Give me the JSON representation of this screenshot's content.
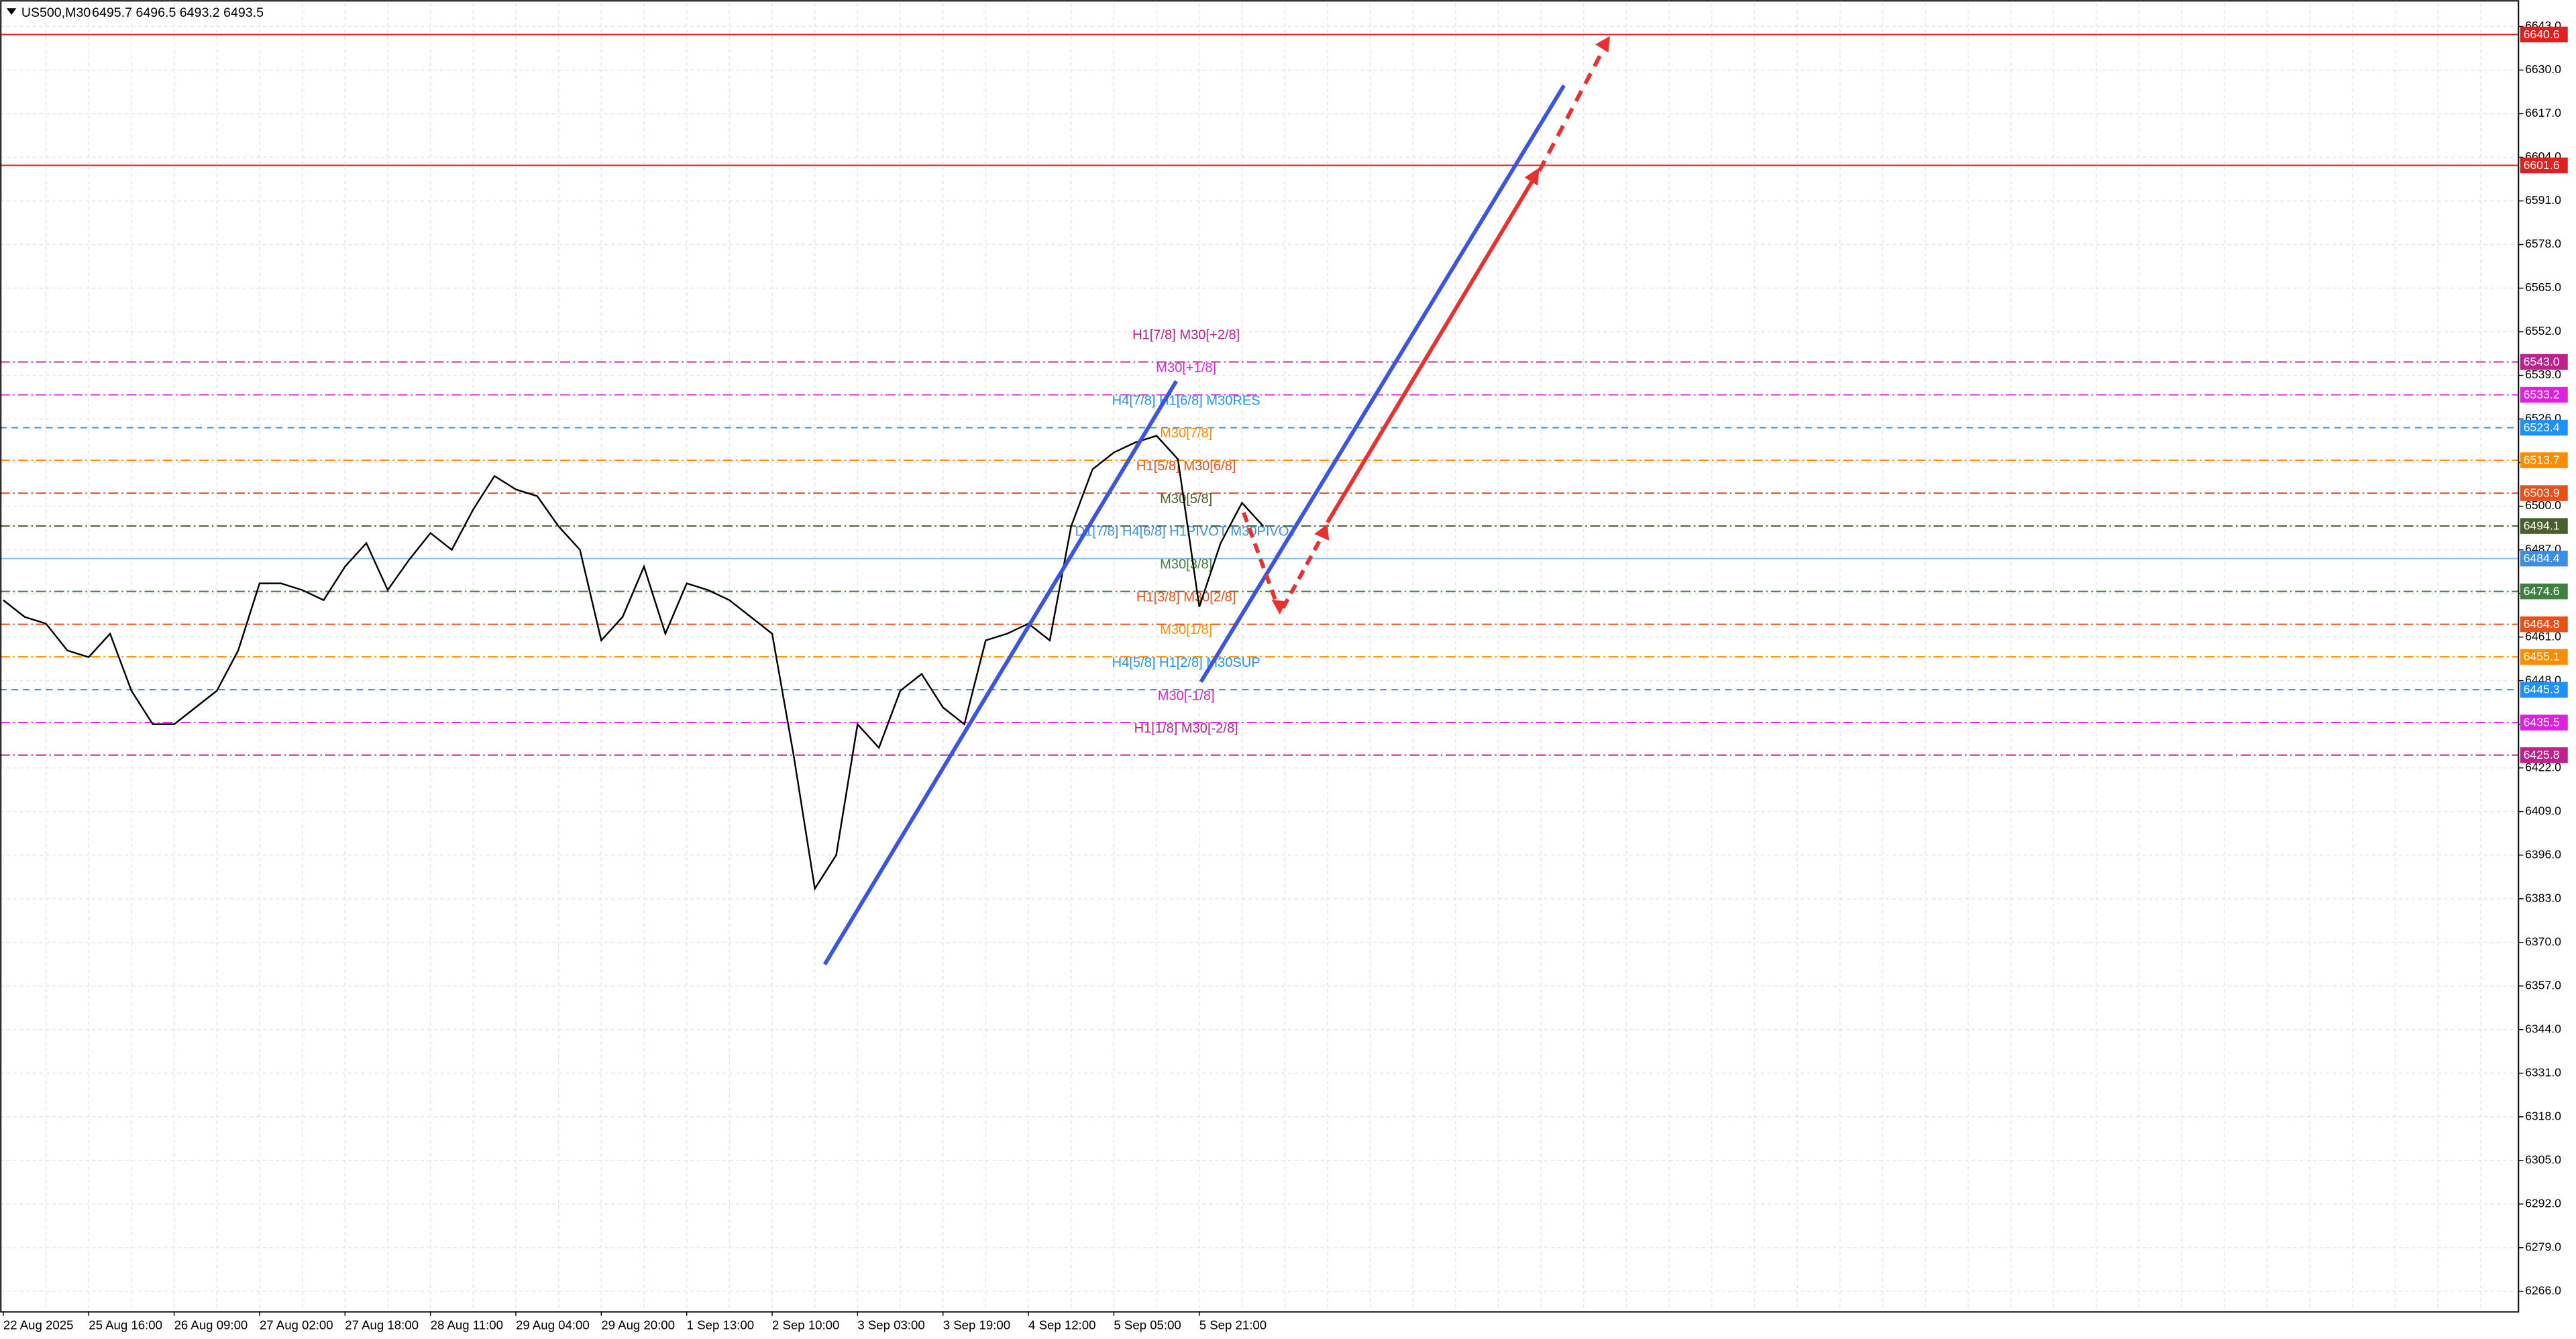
{
  "chart_data": {
    "type": "line",
    "title": "US500,M30",
    "subtitle": "6495.7 6496.5 6493.2 6493.5",
    "categories": [
      "22 Aug 2025",
      null,
      null,
      null,
      "25 Aug 16:00",
      null,
      null,
      null,
      "26 Aug 09:00",
      null,
      null,
      null,
      "27 Aug 02:00",
      null,
      null,
      null,
      "27 Aug 18:00",
      null,
      null,
      null,
      "28 Aug 11:00",
      null,
      null,
      null,
      "29 Aug 04:00",
      null,
      null,
      null,
      "29 Aug 20:00",
      null,
      null,
      null,
      "1 Sep 13:00",
      null,
      null,
      null,
      "2 Sep 10:00",
      null,
      null,
      null,
      "3 Sep 03:00",
      null,
      null,
      null,
      "3 Sep 19:00",
      null,
      null,
      null,
      "4 Sep 12:00",
      null,
      null,
      null,
      "5 Sep 05:00",
      null,
      null,
      null,
      "5 Sep 21:00",
      null,
      null,
      null
    ],
    "series": [
      {
        "name": "US500,M30",
        "color": "#000000",
        "values": [
          6472,
          6467,
          6465,
          6457,
          6455,
          6462,
          6445,
          6435,
          6435,
          6440,
          6445,
          6457,
          6477,
          6477,
          6475,
          6472,
          6482,
          6489,
          6475,
          6484,
          6492,
          6487,
          6499,
          6509,
          6505,
          6503,
          6494,
          6487,
          6460,
          6467,
          6482,
          6462,
          6477,
          6475,
          6472,
          6467,
          6462,
          6426,
          6386,
          6396,
          6435,
          6428,
          6445,
          6450,
          6440,
          6435,
          6460,
          6462,
          6465,
          6460,
          6494,
          6511,
          6516,
          6519,
          6521,
          6514,
          6470,
          6489,
          6501,
          6494
        ]
      }
    ],
    "ylim": [
      6260.1,
      6649.9
    ],
    "yticks": [
      {
        "value": 6643,
        "label": "6643.0"
      },
      {
        "value": 6630,
        "label": "6630.0"
      },
      {
        "value": 6617,
        "label": "6617.0"
      },
      {
        "value": 6604,
        "label": "6604.0"
      },
      {
        "value": 6591,
        "label": "6591.0"
      },
      {
        "value": 6578,
        "label": "6578.0"
      },
      {
        "value": 6565,
        "label": "6565.0"
      },
      {
        "value": 6552,
        "label": "6552.0"
      },
      {
        "value": 6539,
        "label": "6539.0"
      },
      {
        "value": 6526,
        "label": "6526.0"
      },
      {
        "value": 6513,
        "label": "6513.0"
      },
      {
        "value": 6500,
        "label": "6500.0"
      },
      {
        "value": 6487,
        "label": "6487.0"
      },
      {
        "value": 6474,
        "label": "6474.0"
      },
      {
        "value": 6461,
        "label": "6461.0"
      },
      {
        "value": 6448,
        "label": "6448.0"
      },
      {
        "value": 6435,
        "label": "6435.0"
      },
      {
        "value": 6422,
        "label": "6422.0"
      },
      {
        "value": 6409,
        "label": "6409.0"
      },
      {
        "value": 6396,
        "label": "6396.0"
      },
      {
        "value": 6383,
        "label": "6383.0"
      },
      {
        "value": 6370,
        "label": "6370.0"
      },
      {
        "value": 6357,
        "label": "6357.0"
      },
      {
        "value": 6344,
        "label": "6344.0"
      },
      {
        "value": 6331,
        "label": "6331.0"
      },
      {
        "value": 6318,
        "label": "6318.0"
      },
      {
        "value": 6305,
        "label": "6305.0"
      },
      {
        "value": 6292,
        "label": "6292.0"
      },
      {
        "value": 6279,
        "label": "6279.0"
      },
      {
        "value": 6266,
        "label": "6266.0"
      }
    ],
    "grid": true,
    "levels": [
      {
        "value": 6640.6,
        "label": "6640.6",
        "color": "#e02020"
      },
      {
        "value": 6601.6,
        "label": "6601.6",
        "color": "#e02020"
      },
      {
        "value": 6543.0,
        "label": "6543.0",
        "text": "H1[7/8] M30[+2/8]",
        "color": "#c0208a"
      },
      {
        "value": 6533.2,
        "label": "6533.2",
        "text": "M30[+1/8]",
        "color": "#e020e0"
      },
      {
        "value": 6523.4,
        "label": "6523.4",
        "text": "H4[7/8] H1[6/8] M30RES",
        "color": "#1e90ff"
      },
      {
        "value": 6513.7,
        "label": "6513.7",
        "text": "M30[7/8]",
        "color": "#ff8c00"
      },
      {
        "value": 6503.9,
        "label": "6503.9",
        "text": "H1[5/8] M30[6/8]",
        "color": "#e8501a"
      },
      {
        "value": 6494.1,
        "label": "6494.1",
        "text": "M30[5/8]",
        "color": "#4b5e2e"
      },
      {
        "value": 6484.4,
        "label": "6484.4",
        "text": "D1[7/8] H4[6/8] H1PIVOT M30PIVOT",
        "color": "#3a8ee6"
      },
      {
        "value": 6474.6,
        "label": "6474.6",
        "text": "M30[3/8]",
        "color": "#3f7f3f"
      },
      {
        "value": 6464.8,
        "label": "6464.8",
        "text": "H1[3/8] M30[2/8]",
        "color": "#e8501a"
      },
      {
        "value": 6455.1,
        "label": "6455.1",
        "text": "M30[1/8]",
        "color": "#ff8c00"
      },
      {
        "value": 6445.3,
        "label": "6445.3",
        "text": "H4[5/8] H1[2/8] M30SUP",
        "color": "#1e90ff"
      },
      {
        "value": 6435.5,
        "label": "6435.5",
        "text": "M30[-1/8]",
        "color": "#e020e0"
      },
      {
        "value": 6425.8,
        "label": "6425.8",
        "text": "H1[1/8] M30[-2/8]",
        "color": "#c0208a"
      }
    ]
  }
}
